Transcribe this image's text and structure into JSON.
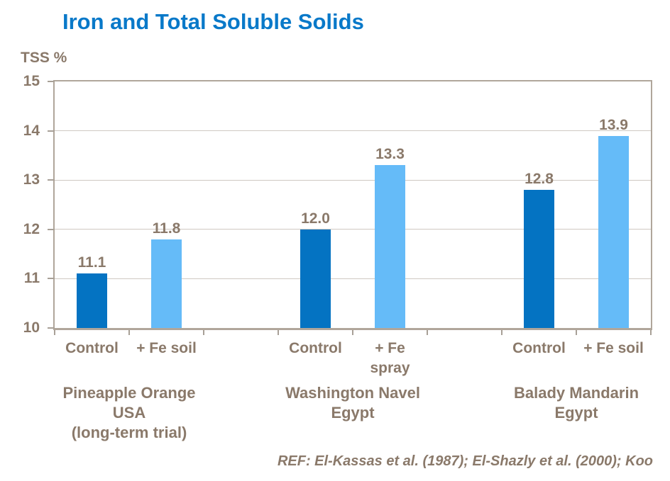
{
  "header": {
    "title": "Iron and Total Soluble Solids"
  },
  "footer": {
    "reference": "REF: El-Kassas et al. (1987); El-Shazly et al. (2000); Koo"
  },
  "colors": {
    "title_blue": "#0979C9",
    "text_brown": "#8A796A",
    "bar_control": "#0473C2",
    "bar_treatment": "#65BBF8",
    "gridline": "#CFC9C2",
    "axis_frame": "#B0A69B",
    "tick": "#A8A097",
    "background": "#FFFFFF"
  },
  "chart_data": {
    "type": "bar",
    "title": "Iron and Total Soluble Solids",
    "xlabel": "",
    "ylabel": "TSS %",
    "ylim": [
      10,
      15
    ],
    "yticks": [
      10,
      11,
      12,
      13,
      14,
      15
    ],
    "grid": "horizontal",
    "legend_position": "none",
    "value_labels_shown": true,
    "series_meaning": {
      "control": "Control",
      "treatment": "Iron treatment"
    },
    "groups": [
      {
        "name": "Pineapple Orange\nUSA\n(long-term trial)",
        "bars": [
          {
            "label": "Control",
            "series": "control",
            "value": 11.1
          },
          {
            "label": "+ Fe soil",
            "series": "treatment",
            "value": 11.8
          }
        ]
      },
      {
        "name": "Washington Navel\nEgypt",
        "bars": [
          {
            "label": "Control",
            "series": "control",
            "value": 12.0
          },
          {
            "label": "+ Fe\nspray",
            "series": "treatment",
            "value": 13.3
          }
        ]
      },
      {
        "name": "Balady Mandarin\nEgypt",
        "bars": [
          {
            "label": "Control",
            "series": "control",
            "value": 12.8
          },
          {
            "label": "+ Fe soil",
            "series": "treatment",
            "value": 13.9
          }
        ]
      }
    ]
  }
}
